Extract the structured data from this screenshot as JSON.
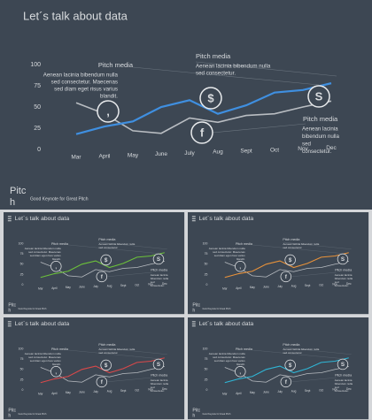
{
  "chart_data": {
    "type": "line",
    "title": "Let´s talk about data",
    "categories": [
      "Mar",
      "April",
      "May",
      "June",
      "July",
      "Aug",
      "Sept",
      "Oct",
      "Nov",
      "Dec"
    ],
    "series": [
      {
        "name": "gray",
        "color": "#b9bdc2",
        "values": [
          55,
          42,
          22,
          19,
          37,
          32,
          40,
          42,
          50,
          57
        ]
      },
      {
        "name": "blue",
        "color": "#3f8fe0",
        "values": [
          18,
          27,
          33,
          50,
          58,
          42,
          52,
          67,
          70,
          78
        ]
      }
    ],
    "ylim": [
      0,
      100
    ],
    "yticks": [
      0,
      25,
      50,
      75,
      100
    ],
    "grid": false
  },
  "annotations": [
    {
      "title": "Pitch media",
      "icon": ",",
      "lines": [
        "Aenean lacinia bibendum nulla",
        "sed consectetur. Maecenas",
        "sed diam eget risus varius",
        "blandit."
      ]
    },
    {
      "title": "Pitch media",
      "icon": "$",
      "lines": [
        "Aenean lacinia bibendum nulla",
        "sed consectetur."
      ]
    },
    {
      "title": "Pitch media",
      "icon": "f",
      "lines": [
        "Aenean lacinia",
        "bibendum nulla",
        "sed",
        "consectetur."
      ]
    },
    {
      "icon": "S"
    }
  ],
  "footer": {
    "logo": [
      "Pitc",
      "h"
    ],
    "tagline": "Good Keynote for Great Pitch"
  },
  "thumbnails": [
    {
      "color": "#6cc23a"
    },
    {
      "color": "#e8923a"
    },
    {
      "color": "#d9484a"
    },
    {
      "color": "#2fb6d6"
    }
  ]
}
